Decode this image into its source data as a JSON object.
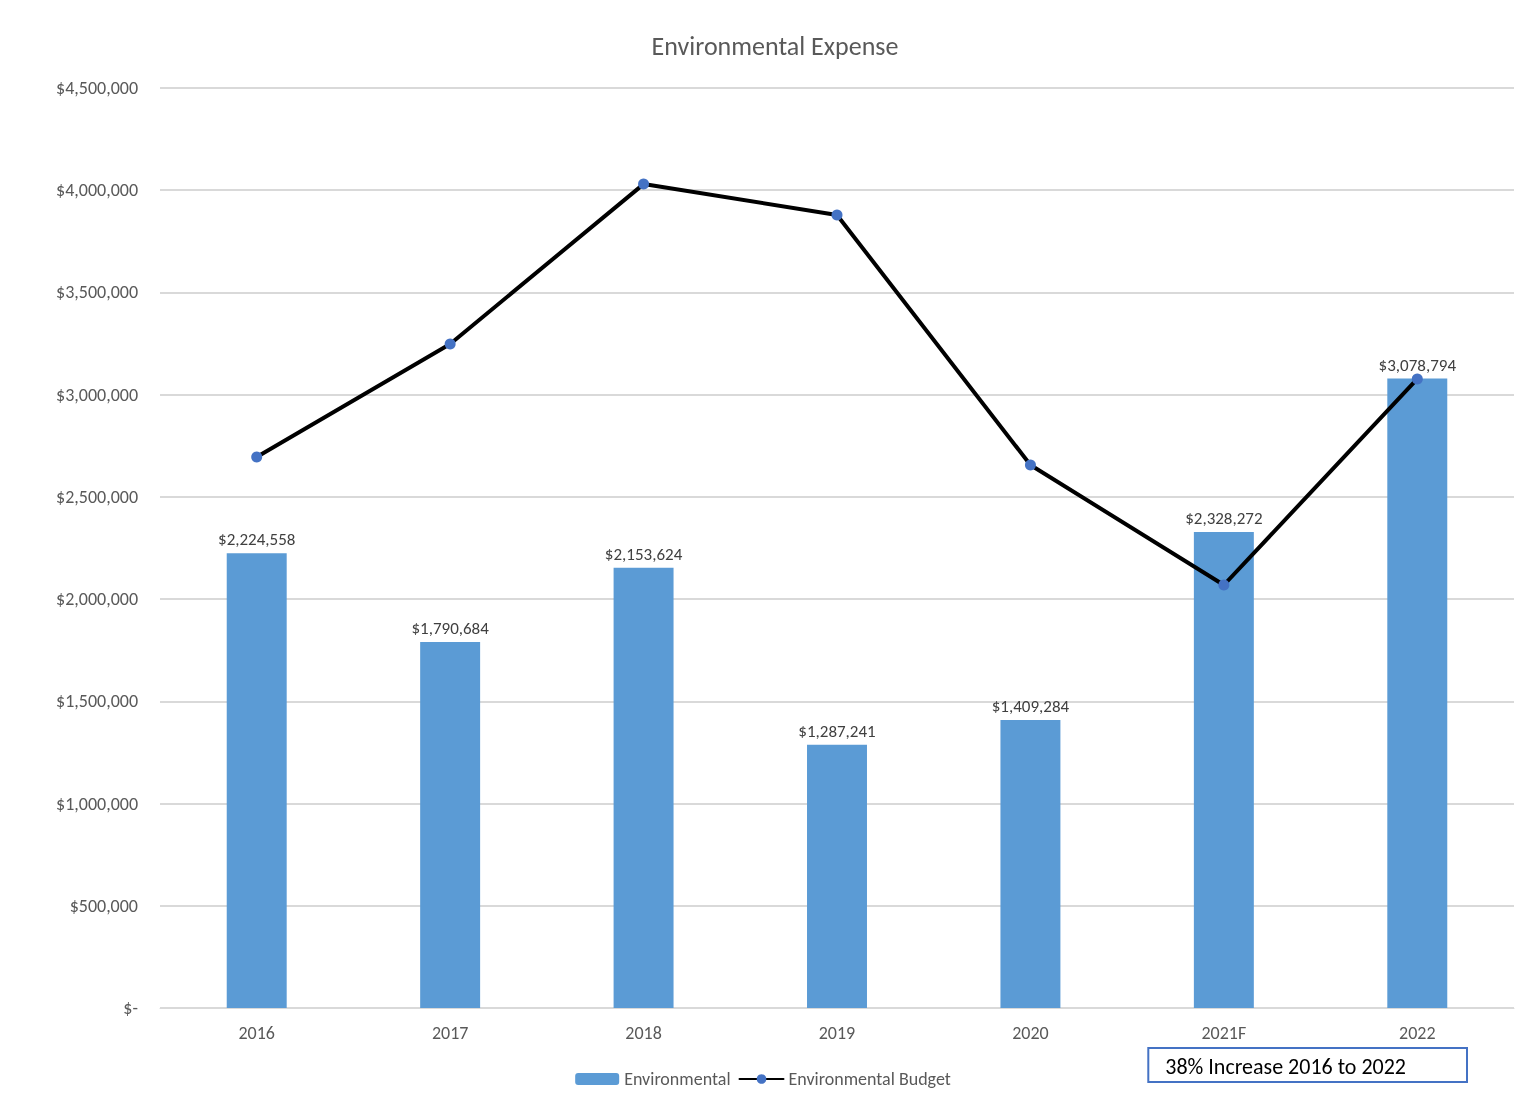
{
  "chart_data": {
    "type": "bar",
    "title": "Environmental Expense",
    "categories": [
      "2016",
      "2017",
      "2018",
      "2019",
      "2020",
      "2021F",
      "2022"
    ],
    "series": [
      {
        "name": "Environmental",
        "color": "#5b9bd5",
        "values": [
          2224558,
          1790684,
          2153624,
          1287241,
          1409284,
          2328272,
          3078794
        ],
        "value_labels": [
          "$2,224,558",
          "$1,790,684",
          "$2,153,624",
          "$1,287,241",
          "$1,409,284",
          "$2,328,272",
          "$3,078,794"
        ]
      },
      {
        "name": "Environmental Budget",
        "type": "line",
        "color": "#000000",
        "values": [
          2695000,
          3248000,
          4030000,
          3879000,
          2656000,
          2069000,
          3077000
        ]
      }
    ],
    "ylim": [
      0,
      4500000
    ],
    "yticks": [
      {
        "value": 0,
        "label": "$-"
      },
      {
        "value": 500000,
        "label": "$500,000"
      },
      {
        "value": 1000000,
        "label": "$1,000,000"
      },
      {
        "value": 1500000,
        "label": "$1,500,000"
      },
      {
        "value": 2000000,
        "label": "$2,000,000"
      },
      {
        "value": 2500000,
        "label": "$2,500,000"
      },
      {
        "value": 3000000,
        "label": "$3,000,000"
      },
      {
        "value": 3500000,
        "label": "$3,500,000"
      },
      {
        "value": 4000000,
        "label": "$4,000,000"
      },
      {
        "value": 4500000,
        "label": "$4,500,000"
      }
    ],
    "grid": "y",
    "legend": "bottom",
    "marker": "circle",
    "line_style": "solid",
    "annotations": [
      "38% Increase 2016 to 2022"
    ]
  }
}
